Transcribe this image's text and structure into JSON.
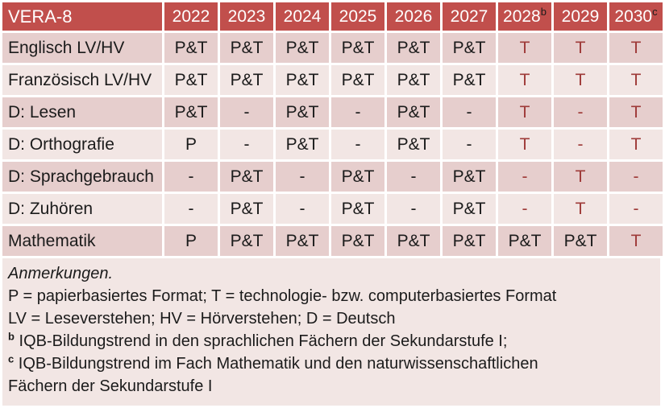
{
  "colors": {
    "header_bg": "#C14F4C",
    "row_dark": "#E6CECD",
    "row_light": "#F2E6E4",
    "notes_bg": "#F2E6E4",
    "text_dark": "#1B1B1B",
    "text_red": "#9E3A38",
    "header_text": "#FFFFFF"
  },
  "table": {
    "title": "VERA-8",
    "columns": [
      {
        "label": "2022",
        "sup": ""
      },
      {
        "label": "2023",
        "sup": ""
      },
      {
        "label": "2024",
        "sup": ""
      },
      {
        "label": "2025",
        "sup": ""
      },
      {
        "label": "2026",
        "sup": ""
      },
      {
        "label": "2027",
        "sup": ""
      },
      {
        "label": "2028",
        "sup": "b"
      },
      {
        "label": "2029",
        "sup": ""
      },
      {
        "label": "2030",
        "sup": "c"
      }
    ],
    "rows": [
      {
        "label": "Englisch LV/HV",
        "cells": [
          {
            "v": "P&T",
            "red": false
          },
          {
            "v": "P&T",
            "red": false
          },
          {
            "v": "P&T",
            "red": false
          },
          {
            "v": "P&T",
            "red": false
          },
          {
            "v": "P&T",
            "red": false
          },
          {
            "v": "P&T",
            "red": false
          },
          {
            "v": "T",
            "red": true
          },
          {
            "v": "T",
            "red": true
          },
          {
            "v": "T",
            "red": true
          }
        ]
      },
      {
        "label": "Französisch LV/HV",
        "cells": [
          {
            "v": "P&T",
            "red": false
          },
          {
            "v": "P&T",
            "red": false
          },
          {
            "v": "P&T",
            "red": false
          },
          {
            "v": "P&T",
            "red": false
          },
          {
            "v": "P&T",
            "red": false
          },
          {
            "v": "P&T",
            "red": false
          },
          {
            "v": "T",
            "red": true
          },
          {
            "v": "T",
            "red": true
          },
          {
            "v": "T",
            "red": true
          }
        ]
      },
      {
        "label": "D: Lesen",
        "cells": [
          {
            "v": "P&T",
            "red": false
          },
          {
            "v": "-",
            "red": false
          },
          {
            "v": "P&T",
            "red": false
          },
          {
            "v": "-",
            "red": false
          },
          {
            "v": "P&T",
            "red": false
          },
          {
            "v": "-",
            "red": false
          },
          {
            "v": "T",
            "red": true
          },
          {
            "v": "-",
            "red": true
          },
          {
            "v": "T",
            "red": true
          }
        ]
      },
      {
        "label": "D: Orthografie",
        "cells": [
          {
            "v": "P",
            "red": false
          },
          {
            "v": "-",
            "red": false
          },
          {
            "v": "P&T",
            "red": false
          },
          {
            "v": "-",
            "red": false
          },
          {
            "v": "P&T",
            "red": false
          },
          {
            "v": "-",
            "red": false
          },
          {
            "v": "T",
            "red": true
          },
          {
            "v": "-",
            "red": true
          },
          {
            "v": "T",
            "red": true
          }
        ]
      },
      {
        "label": "D: Sprachgebrauch",
        "cells": [
          {
            "v": "-",
            "red": false
          },
          {
            "v": "P&T",
            "red": false
          },
          {
            "v": "-",
            "red": false
          },
          {
            "v": "P&T",
            "red": false
          },
          {
            "v": "-",
            "red": false
          },
          {
            "v": "P&T",
            "red": false
          },
          {
            "v": "-",
            "red": true
          },
          {
            "v": "T",
            "red": true
          },
          {
            "v": "-",
            "red": true
          }
        ]
      },
      {
        "label": "D: Zuhören",
        "cells": [
          {
            "v": "-",
            "red": false
          },
          {
            "v": "P&T",
            "red": false
          },
          {
            "v": "-",
            "red": false
          },
          {
            "v": "P&T",
            "red": false
          },
          {
            "v": "-",
            "red": false
          },
          {
            "v": "P&T",
            "red": false
          },
          {
            "v": "-",
            "red": true
          },
          {
            "v": "T",
            "red": true
          },
          {
            "v": "-",
            "red": true
          }
        ]
      },
      {
        "label": "Mathematik",
        "cells": [
          {
            "v": "P",
            "red": false
          },
          {
            "v": "P&T",
            "red": false
          },
          {
            "v": "P&T",
            "red": false
          },
          {
            "v": "P&T",
            "red": false
          },
          {
            "v": "P&T",
            "red": false
          },
          {
            "v": "P&T",
            "red": false
          },
          {
            "v": "P&T",
            "red": false
          },
          {
            "v": "P&T",
            "red": false
          },
          {
            "v": "T",
            "red": true
          }
        ]
      }
    ]
  },
  "notes": {
    "lines": [
      {
        "text": "Anmerkungen.",
        "italic": true,
        "sup": ""
      },
      {
        "text": "P = papierbasiertes Format; T = technologie- bzw. computerbasiertes Format",
        "italic": false,
        "sup": ""
      },
      {
        "text": "LV = Leseverstehen; HV = Hörverstehen; D = Deutsch",
        "italic": false,
        "sup": ""
      },
      {
        "text": "IQB-Bildungstrend in den sprachlichen Fächern der Sekundarstufe I;",
        "italic": false,
        "sup": "b"
      },
      {
        "text": "IQB-Bildungstrend im Fach Mathematik und den naturwissenschaftlichen",
        "italic": false,
        "sup": "c"
      },
      {
        "text": "Fächern der Sekundarstufe I",
        "italic": false,
        "sup": ""
      }
    ]
  }
}
